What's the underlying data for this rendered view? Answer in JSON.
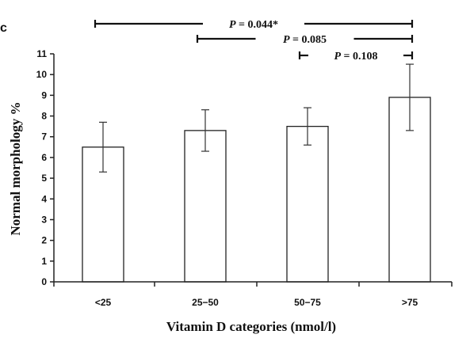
{
  "panel_label": "c",
  "chart_data": {
    "type": "bar",
    "categories": [
      "<25",
      "25−50",
      "50−75",
      ">75"
    ],
    "values": [
      6.5,
      7.3,
      7.5,
      8.9
    ],
    "error_upper": [
      7.7,
      8.3,
      8.4,
      10.5
    ],
    "error_lower": [
      5.3,
      6.3,
      6.6,
      7.3
    ],
    "ylabel": "Normal morphology %",
    "xlabel": "Vitamin D categories (nmol/l)",
    "ylim": [
      0,
      11
    ],
    "yticks": [
      "0",
      "1",
      "2",
      "3",
      "4",
      "5",
      "6",
      "7",
      "8",
      "9",
      "10",
      "11"
    ],
    "grid": false,
    "legend": "none",
    "bar_fill": "#ffffff",
    "bar_stroke": "#222222",
    "comparisons": [
      {
        "from": 0,
        "to": 3,
        "p_prefix": "P",
        "p_value": " = 0.044*"
      },
      {
        "from": 1,
        "to": 3,
        "p_prefix": "P",
        "p_value": " = 0.085"
      },
      {
        "from": 2,
        "to": 3,
        "p_prefix": "P",
        "p_value": " = 0.108"
      }
    ]
  }
}
